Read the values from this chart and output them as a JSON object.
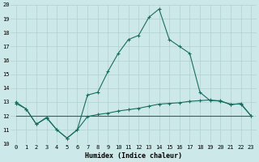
{
  "xlabel": "Humidex (Indice chaleur)",
  "bg_color": "#cce8e8",
  "grid_color": "#b0d0d0",
  "line_color": "#1a6e60",
  "xlim": [
    -0.5,
    23.5
  ],
  "ylim": [
    10,
    20
  ],
  "xticks": [
    0,
    1,
    2,
    3,
    4,
    5,
    6,
    7,
    8,
    9,
    10,
    11,
    12,
    13,
    14,
    15,
    16,
    17,
    18,
    19,
    20,
    21,
    22,
    23
  ],
  "yticks": [
    10,
    11,
    12,
    13,
    14,
    15,
    16,
    17,
    18,
    19,
    20
  ],
  "main_line_x": [
    0,
    1,
    2,
    3,
    4,
    5,
    6,
    7,
    8,
    9,
    10,
    11,
    12,
    13,
    14,
    15,
    16,
    17,
    18,
    19,
    20,
    21,
    22,
    23
  ],
  "main_line_y": [
    13.0,
    12.5,
    11.4,
    11.9,
    11.0,
    10.4,
    11.0,
    13.5,
    13.7,
    15.2,
    16.5,
    17.5,
    17.8,
    19.1,
    19.7,
    17.5,
    17.0,
    16.5,
    13.7,
    13.1,
    13.1,
    12.8,
    12.9,
    12.0
  ],
  "line2_x": [
    0,
    1,
    2,
    3,
    4,
    5,
    6,
    7,
    8,
    9,
    10,
    11,
    12,
    13,
    14,
    15,
    16,
    17,
    18,
    19,
    20,
    21,
    22,
    23
  ],
  "line2_y": [
    12.9,
    12.5,
    11.4,
    11.85,
    11.0,
    10.4,
    11.0,
    11.95,
    12.1,
    12.2,
    12.35,
    12.45,
    12.55,
    12.7,
    12.85,
    12.9,
    12.95,
    13.05,
    13.1,
    13.15,
    13.05,
    12.85,
    12.85,
    12.0
  ],
  "line3_x": [
    0,
    23
  ],
  "line3_y": [
    12.0,
    12.0
  ]
}
